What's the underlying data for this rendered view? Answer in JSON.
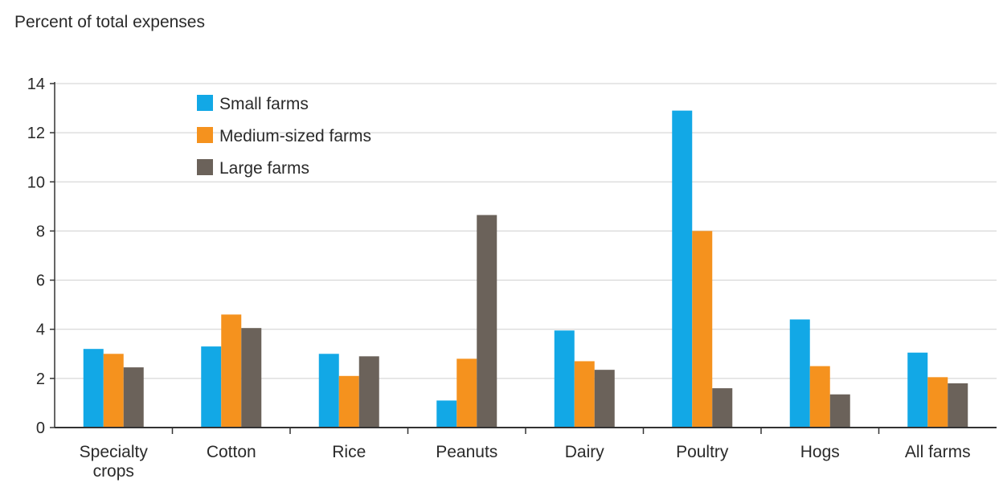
{
  "chart_data": {
    "type": "bar",
    "ylabel": "Percent of total expenses",
    "xlabel": "",
    "ylim": [
      0,
      14
    ],
    "yticks": [
      0,
      2,
      4,
      6,
      8,
      10,
      12,
      14
    ],
    "grid": true,
    "legend_position": "top-left",
    "categories": [
      [
        "Specialty",
        "crops"
      ],
      [
        "Cotton"
      ],
      [
        "Rice"
      ],
      [
        "Peanuts"
      ],
      [
        "Dairy"
      ],
      [
        "Poultry"
      ],
      [
        "Hogs"
      ],
      [
        "All farms"
      ]
    ],
    "series": [
      {
        "name": "Small farms",
        "color": "#12a8e6",
        "values": [
          3.2,
          3.3,
          3.0,
          1.1,
          3.95,
          12.9,
          4.4,
          3.05
        ]
      },
      {
        "name": "Medium-sized farms",
        "color": "#f5921e",
        "values": [
          3.0,
          4.6,
          2.1,
          2.8,
          2.7,
          8.0,
          2.5,
          2.05
        ]
      },
      {
        "name": "Large farms",
        "color": "#6b625a",
        "values": [
          2.45,
          4.05,
          2.9,
          8.65,
          2.35,
          1.6,
          1.35,
          1.8
        ]
      }
    ]
  }
}
